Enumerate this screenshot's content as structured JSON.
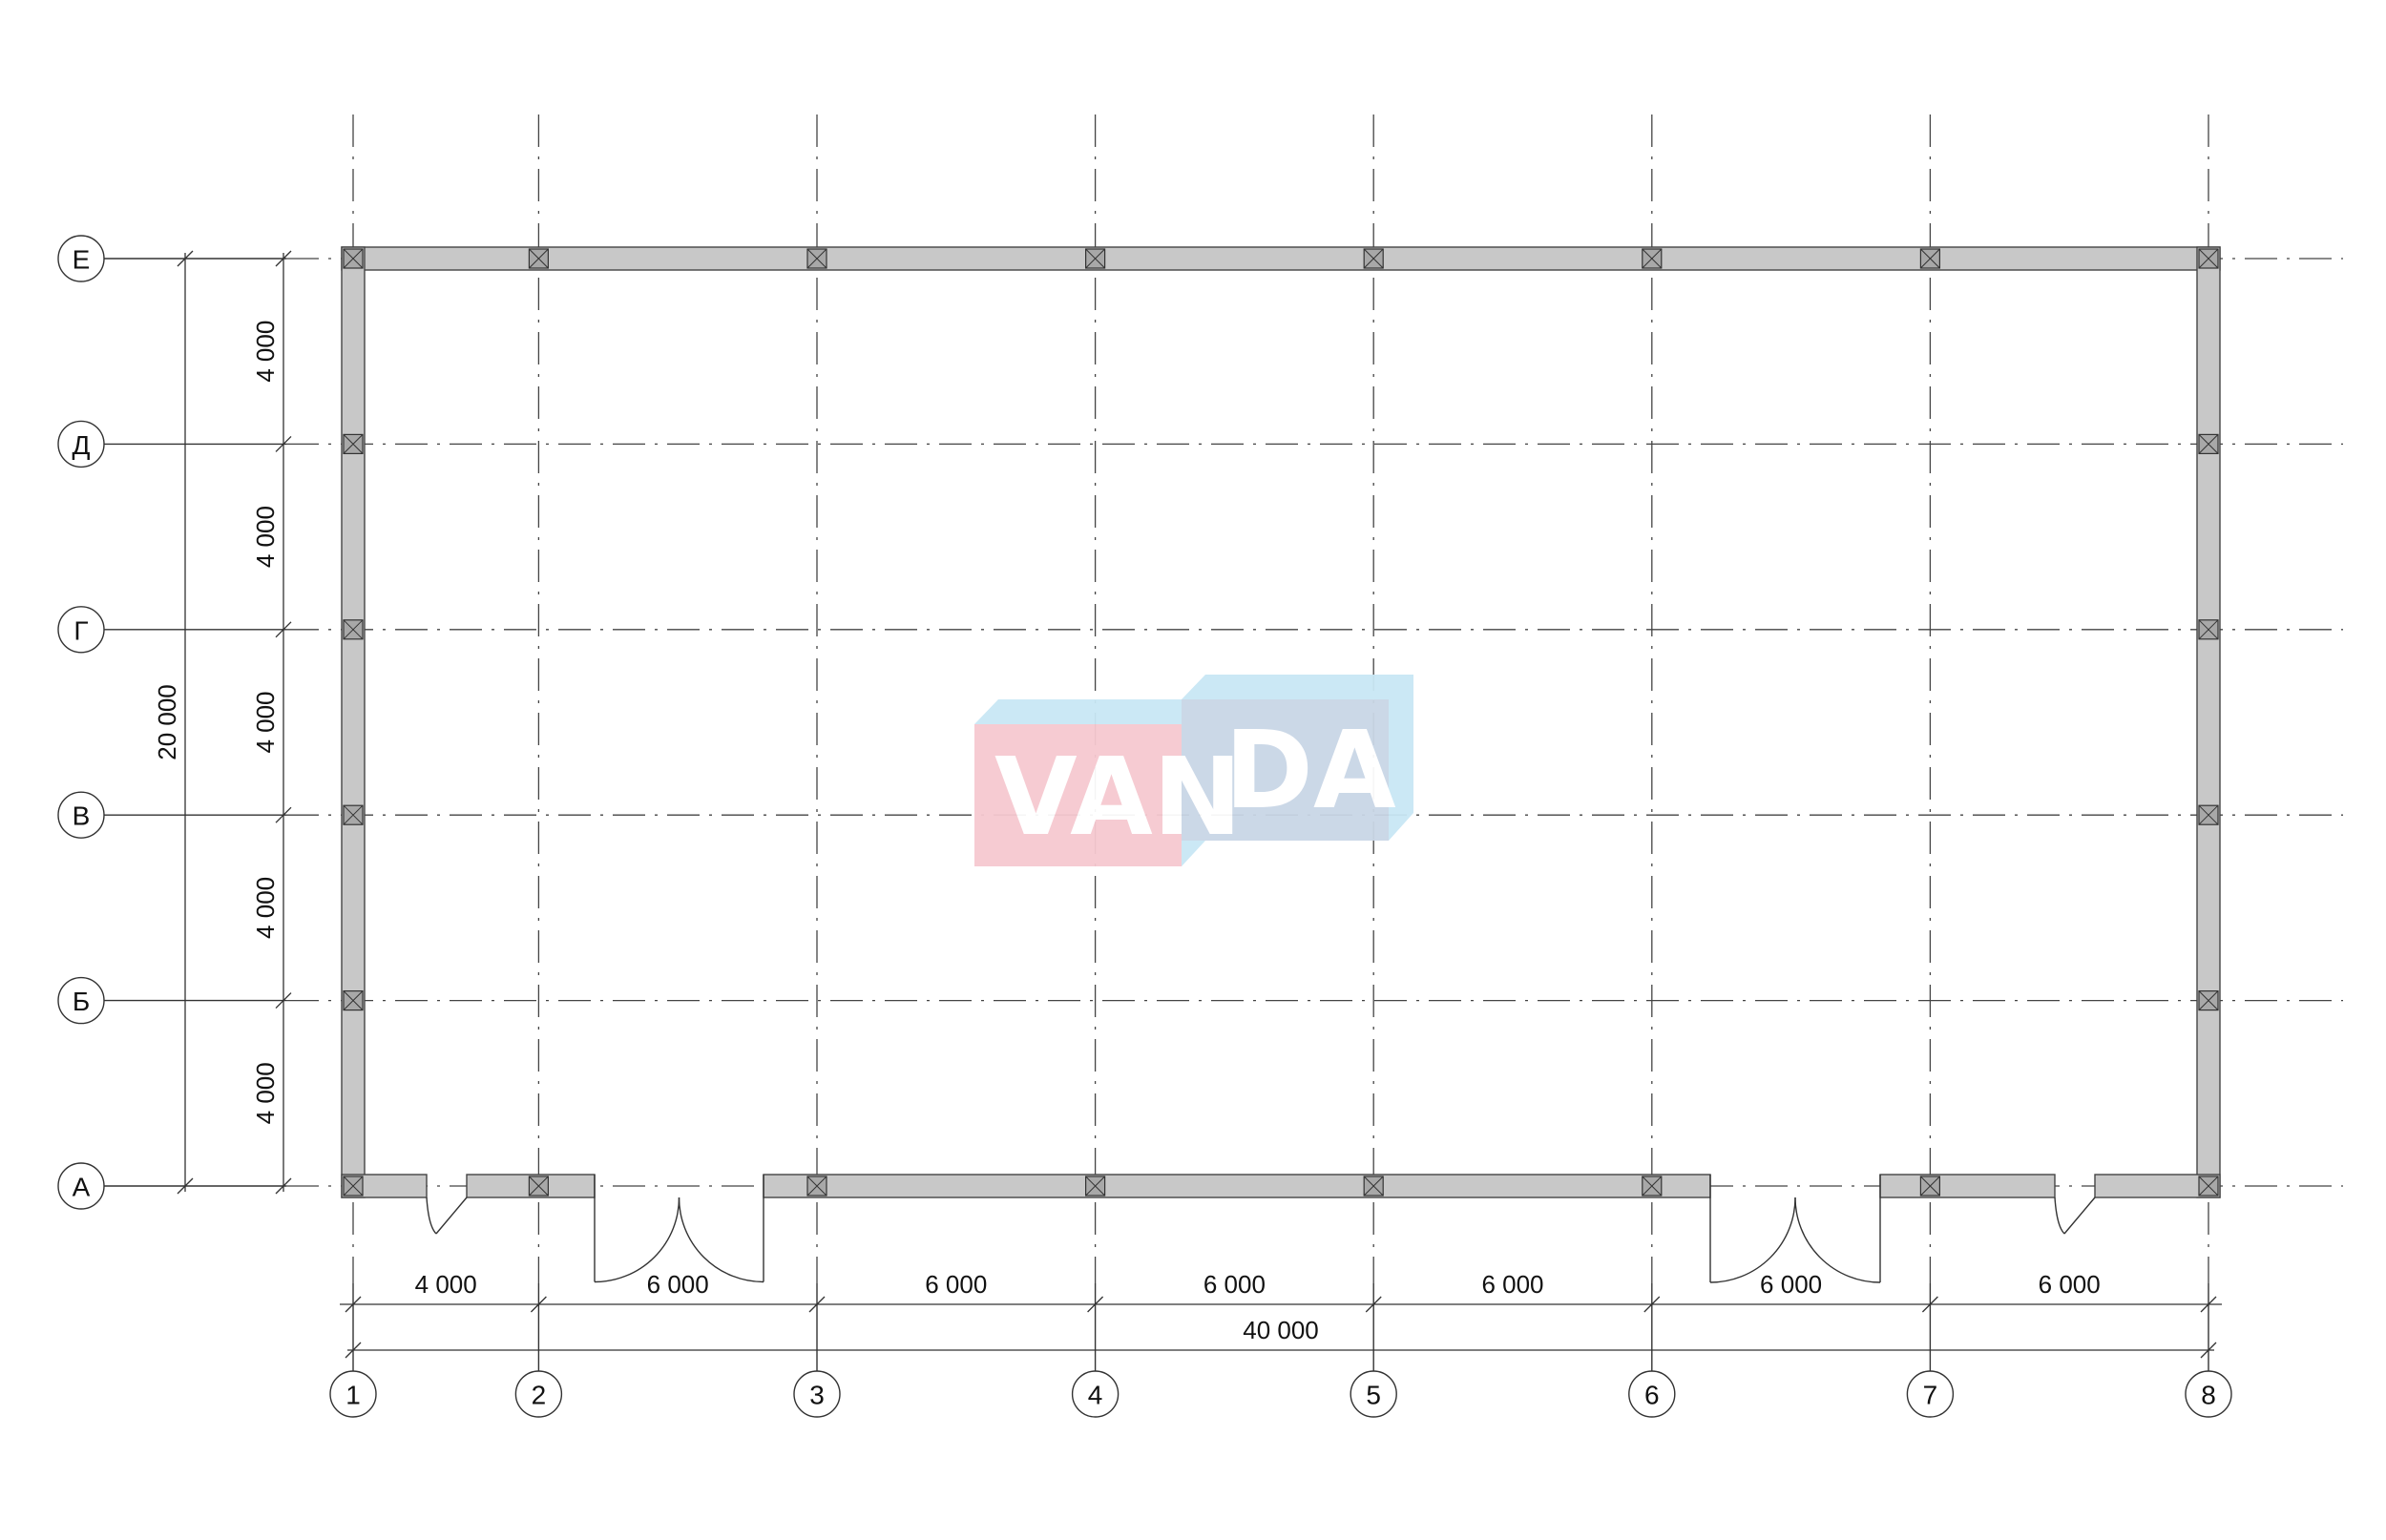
{
  "plan": {
    "column_axes": [
      "1",
      "2",
      "3",
      "4",
      "5",
      "6",
      "7",
      "8"
    ],
    "row_axes": [
      "А",
      "Б",
      "В",
      "Г",
      "Д",
      "Е"
    ],
    "column_spacings": [
      "4 000",
      "6 000",
      "6 000",
      "6 000",
      "6 000",
      "6 000",
      "6 000"
    ],
    "row_spacings": [
      "4 000",
      "4 000",
      "4 000",
      "4 000",
      "4 000"
    ],
    "column_spacing_mm": [
      4000,
      6000,
      6000,
      6000,
      6000,
      6000,
      6000
    ],
    "row_spacing_mm": [
      4000,
      4000,
      4000,
      4000,
      4000
    ],
    "overall_width": "40 000",
    "overall_depth": "20 000",
    "doors": [
      {
        "type": "single",
        "between_axes": [
          "1",
          "2"
        ]
      },
      {
        "type": "double",
        "between_axes": [
          "2",
          "3"
        ]
      },
      {
        "type": "double",
        "between_axes": [
          "6",
          "7"
        ]
      },
      {
        "type": "single",
        "between_axes": [
          "7",
          "8"
        ]
      }
    ]
  },
  "watermark": {
    "text": "VANDA",
    "colors": {
      "pink": "#f6c9d0",
      "slate": "#c9d6e6",
      "sky": "#c9e7f5"
    }
  },
  "colors": {
    "wall": "#c8c8c8",
    "column": "#a8a8a8",
    "line": "#333333"
  }
}
